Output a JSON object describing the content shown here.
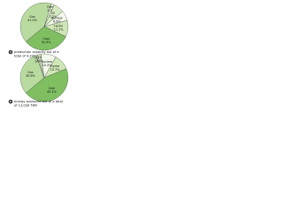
{
  "chart_data": [
    {
      "type": "pie",
      "tag": "a",
      "caption_lines": [
        "production capacity out of a",
        "total of 4,200 GW"
      ],
      "categories": [
        "Gas",
        "Other",
        "Oil",
        "Nuclear",
        "Hydro",
        "Coal"
      ],
      "values": [
        41.0,
        2.0,
        7.2,
        6.8,
        11.1,
        31.9
      ],
      "value_labels": [
        "41.0%",
        "2.0%",
        "7.2%",
        "6.8%",
        "11.1%",
        "31.9%"
      ],
      "colors": [
        "#b9dba0",
        "#e6f2d8",
        "#d3e8bf",
        "#f2f8ea",
        "#cfe7b6",
        "#7fbf62"
      ]
    },
    {
      "type": "pie",
      "tag": "b",
      "caption_lines": [
        "energy produced out of a total",
        "of 13,026 TWh"
      ],
      "categories": [
        "Gas",
        "Other",
        "Oil",
        "Nuclear",
        "Hydro",
        "Coal"
      ],
      "values": [
        30.6,
        1.0,
        2.3,
        10.3,
        10.7,
        45.1
      ],
      "value_labels": [
        "30.6%",
        "1.0%",
        "2.3%",
        "10.3%",
        "10.7%",
        "45.1%"
      ],
      "colors": [
        "#b9dba0",
        "#e6f2d8",
        "#d3e8bf",
        "#f2f8ea",
        "#cfe7b6",
        "#7fbf62"
      ]
    }
  ]
}
